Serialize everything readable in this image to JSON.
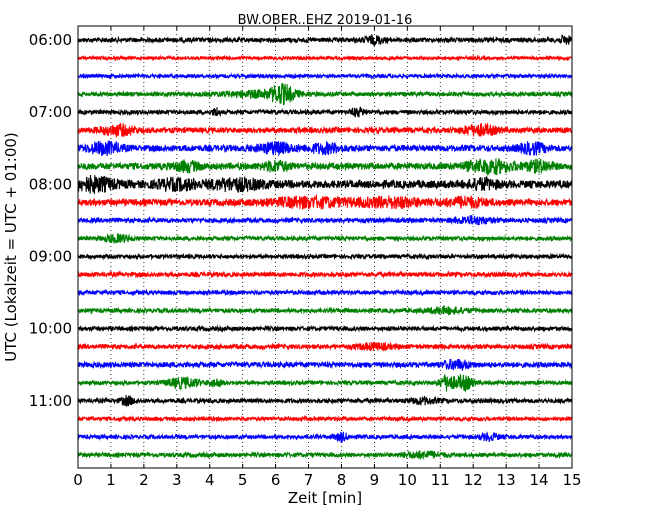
{
  "chart_data": {
    "type": "line",
    "title": "BW.OBER..EHZ 2019-01-16",
    "xlabel": "Zeit  [min]",
    "ylabel": "UTC (Lokalzeit = UTC + 01:00)",
    "xlim": [
      0,
      15
    ],
    "x_ticks": [
      "0",
      "1",
      "2",
      "3",
      "4",
      "5",
      "6",
      "7",
      "8",
      "9",
      "10",
      "11",
      "12",
      "13",
      "14",
      "15"
    ],
    "y_ticks": [
      "06:00",
      "07:00",
      "08:00",
      "09:00",
      "10:00",
      "11:00"
    ],
    "trace_colors": [
      "#000000",
      "#ff0000",
      "#0000ff",
      "#008000"
    ],
    "grid": true,
    "trace_start_times": [
      "06:00",
      "06:15",
      "06:30",
      "06:45",
      "07:00",
      "07:15",
      "07:30",
      "07:45",
      "08:00",
      "08:15",
      "08:30",
      "08:45",
      "09:00",
      "09:15",
      "09:30",
      "09:45",
      "10:00",
      "10:15",
      "10:30",
      "10:45",
      "11:00",
      "11:15",
      "11:30",
      "11:45"
    ],
    "trace_noise_level": [
      0.35,
      0.25,
      0.28,
      0.32,
      0.33,
      0.42,
      0.48,
      0.5,
      0.6,
      0.5,
      0.35,
      0.32,
      0.3,
      0.35,
      0.32,
      0.32,
      0.33,
      0.35,
      0.4,
      0.3,
      0.33,
      0.3,
      0.3,
      0.32
    ],
    "events": [
      {
        "trace": 0,
        "min": 9.0,
        "amp": 0.5,
        "width": 0.3
      },
      {
        "trace": 0,
        "min": 14.8,
        "amp": 0.5,
        "width": 0.2
      },
      {
        "trace": 3,
        "min": 5.5,
        "amp": 0.4,
        "width": 1.2
      },
      {
        "trace": 3,
        "min": 6.2,
        "amp": 1.2,
        "width": 0.35
      },
      {
        "trace": 4,
        "min": 4.2,
        "amp": 0.6,
        "width": 0.1
      },
      {
        "trace": 4,
        "min": 8.5,
        "amp": 0.55,
        "width": 0.2
      },
      {
        "trace": 5,
        "min": 1.2,
        "amp": 0.7,
        "width": 0.5
      },
      {
        "trace": 5,
        "min": 12.2,
        "amp": 0.7,
        "width": 0.5
      },
      {
        "trace": 6,
        "min": 0.8,
        "amp": 0.8,
        "width": 0.5
      },
      {
        "trace": 6,
        "min": 6.0,
        "amp": 0.7,
        "width": 0.5
      },
      {
        "trace": 6,
        "min": 7.5,
        "amp": 0.6,
        "width": 0.5
      },
      {
        "trace": 6,
        "min": 13.8,
        "amp": 0.7,
        "width": 0.4
      },
      {
        "trace": 7,
        "min": 3.3,
        "amp": 0.6,
        "width": 0.4
      },
      {
        "trace": 7,
        "min": 6.0,
        "amp": 0.6,
        "width": 0.4
      },
      {
        "trace": 7,
        "min": 12.5,
        "amp": 0.9,
        "width": 0.7
      },
      {
        "trace": 7,
        "min": 14.0,
        "amp": 0.7,
        "width": 0.4
      },
      {
        "trace": 8,
        "min": 0.5,
        "amp": 0.9,
        "width": 0.6
      },
      {
        "trace": 8,
        "min": 3.0,
        "amp": 0.6,
        "width": 0.6
      },
      {
        "trace": 8,
        "min": 4.8,
        "amp": 0.7,
        "width": 0.8
      },
      {
        "trace": 8,
        "min": 12.3,
        "amp": 0.6,
        "width": 0.4
      },
      {
        "trace": 9,
        "min": 7.0,
        "amp": 0.6,
        "width": 1.2
      },
      {
        "trace": 9,
        "min": 9.5,
        "amp": 0.6,
        "width": 1.0
      },
      {
        "trace": 9,
        "min": 11.8,
        "amp": 0.6,
        "width": 0.6
      },
      {
        "trace": 10,
        "min": 12.0,
        "amp": 0.5,
        "width": 0.5
      },
      {
        "trace": 11,
        "min": 1.2,
        "amp": 0.5,
        "width": 0.4
      },
      {
        "trace": 15,
        "min": 11.2,
        "amp": 0.4,
        "width": 0.6
      },
      {
        "trace": 17,
        "min": 9.0,
        "amp": 0.4,
        "width": 0.5
      },
      {
        "trace": 18,
        "min": 11.5,
        "amp": 0.6,
        "width": 0.4
      },
      {
        "trace": 19,
        "min": 3.2,
        "amp": 0.7,
        "width": 0.5
      },
      {
        "trace": 19,
        "min": 4.2,
        "amp": 0.5,
        "width": 0.2
      },
      {
        "trace": 19,
        "min": 11.2,
        "amp": 1.1,
        "width": 0.2
      },
      {
        "trace": 19,
        "min": 11.7,
        "amp": 1.0,
        "width": 0.3
      },
      {
        "trace": 20,
        "min": 1.5,
        "amp": 0.6,
        "width": 0.2
      },
      {
        "trace": 20,
        "min": 10.5,
        "amp": 0.4,
        "width": 0.4
      },
      {
        "trace": 22,
        "min": 8.0,
        "amp": 0.6,
        "width": 0.2
      },
      {
        "trace": 22,
        "min": 12.5,
        "amp": 0.5,
        "width": 0.3
      },
      {
        "trace": 23,
        "min": 10.5,
        "amp": 0.4,
        "width": 0.6
      }
    ]
  }
}
